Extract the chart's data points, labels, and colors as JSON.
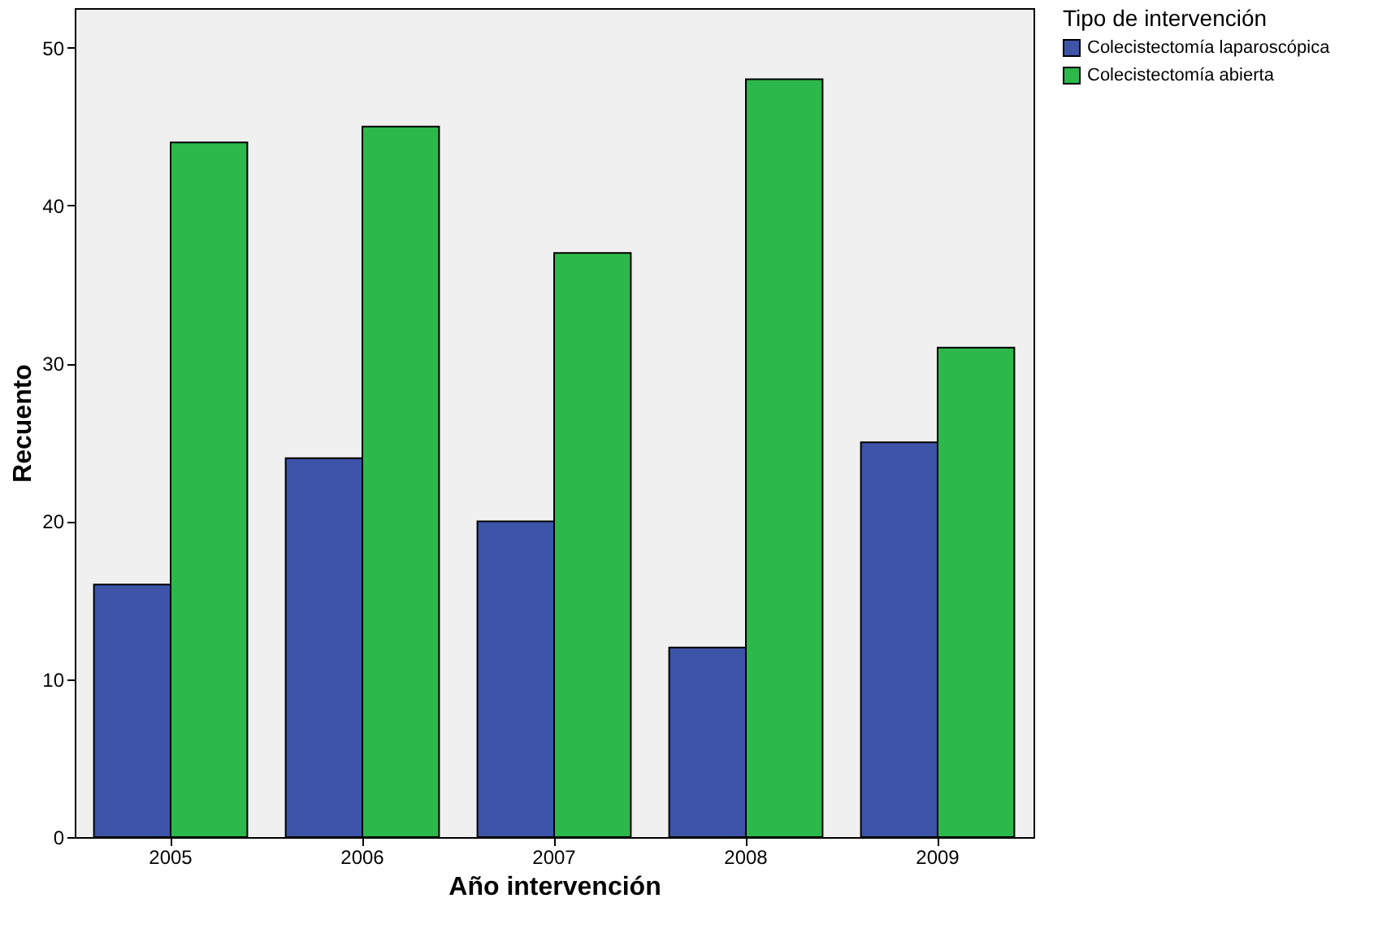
{
  "chart_data": {
    "type": "bar",
    "xlabel": "Año intervención",
    "ylabel": "Recuento",
    "legend_title": "Tipo de intervención",
    "categories": [
      "2005",
      "2006",
      "2007",
      "2008",
      "2009"
    ],
    "series": [
      {
        "name": "Colecistectomía laparoscópica",
        "color": "#3d54a8",
        "values": [
          16,
          24,
          20,
          12,
          25
        ]
      },
      {
        "name": "Colecistectomía abierta",
        "color": "#2db84b",
        "values": [
          44,
          45,
          37,
          48,
          31
        ]
      }
    ],
    "ylim": [
      0,
      52.5
    ],
    "yticks": [
      0,
      10,
      20,
      30,
      40,
      50
    ],
    "grid": false,
    "legend": "top right"
  }
}
